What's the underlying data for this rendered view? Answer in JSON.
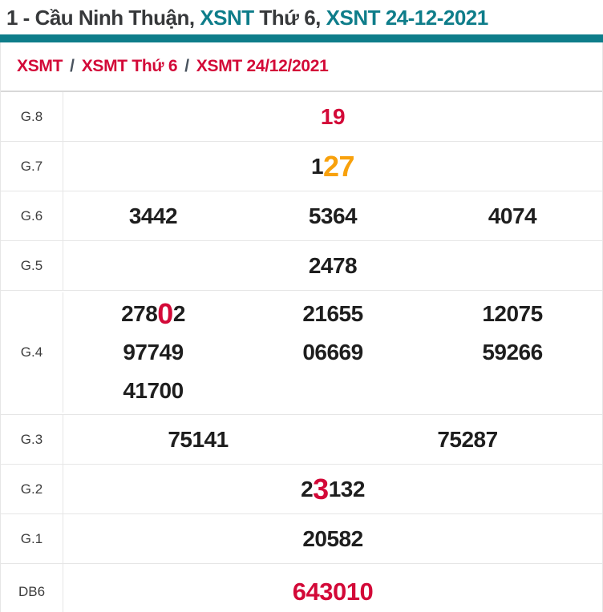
{
  "colors": {
    "teal": "#0e7d8a",
    "red": "#d30938",
    "orange": "#f8a10c",
    "number_black": "#1e1e1e"
  },
  "title": {
    "segments": [
      {
        "text": "1 - Cầu Ninh Thuận, ",
        "link": false
      },
      {
        "text": "XSNT",
        "link": true
      },
      {
        "text": " Thứ 6, ",
        "link": false
      },
      {
        "text": "XSNT 24-12-2021",
        "link": true
      }
    ]
  },
  "breadcrumb": {
    "separator": "/",
    "items": [
      "XSMT",
      "XSMT Thứ 6",
      "XSMT 24/12/2021"
    ]
  },
  "table": {
    "rows": [
      {
        "label": "G.8",
        "layout": "single",
        "variant": "",
        "values": [
          [
            {
              "t": "19",
              "c": "red"
            }
          ]
        ]
      },
      {
        "label": "G.7",
        "layout": "single",
        "variant": "",
        "values": [
          [
            {
              "t": "1"
            },
            {
              "t": "27",
              "c": "orange",
              "big": true
            }
          ]
        ]
      },
      {
        "label": "G.6",
        "layout": "cols3",
        "variant": "",
        "values": [
          [
            {
              "t": "3442"
            }
          ],
          [
            {
              "t": "5364"
            }
          ],
          [
            {
              "t": "4074"
            }
          ]
        ]
      },
      {
        "label": "G.5",
        "layout": "single",
        "variant": "",
        "values": [
          [
            {
              "t": "2478"
            }
          ]
        ]
      },
      {
        "label": "G.4",
        "layout": "cols3",
        "variant": "g4",
        "values": [
          [
            {
              "t": "278"
            },
            {
              "t": "0",
              "c": "red",
              "big": true
            },
            {
              "t": "2"
            }
          ],
          [
            {
              "t": "21655"
            }
          ],
          [
            {
              "t": "12075"
            }
          ],
          [
            {
              "t": "97749"
            }
          ],
          [
            {
              "t": "06669"
            }
          ],
          [
            {
              "t": "59266"
            }
          ],
          [
            {
              "t": "41700"
            }
          ]
        ]
      },
      {
        "label": "G.3",
        "layout": "cols2",
        "variant": "",
        "values": [
          [
            {
              "t": "75141"
            }
          ],
          [
            {
              "t": "75287"
            }
          ]
        ]
      },
      {
        "label": "G.2",
        "layout": "single",
        "variant": "",
        "values": [
          [
            {
              "t": "2"
            },
            {
              "t": "3",
              "c": "red",
              "big": true
            },
            {
              "t": "132"
            }
          ]
        ]
      },
      {
        "label": "G.1",
        "layout": "single",
        "variant": "",
        "values": [
          [
            {
              "t": "20582"
            }
          ]
        ]
      },
      {
        "label": "DB6",
        "layout": "single",
        "variant": "db",
        "values": [
          [
            {
              "t": "643010",
              "c": "red"
            }
          ]
        ]
      }
    ]
  }
}
